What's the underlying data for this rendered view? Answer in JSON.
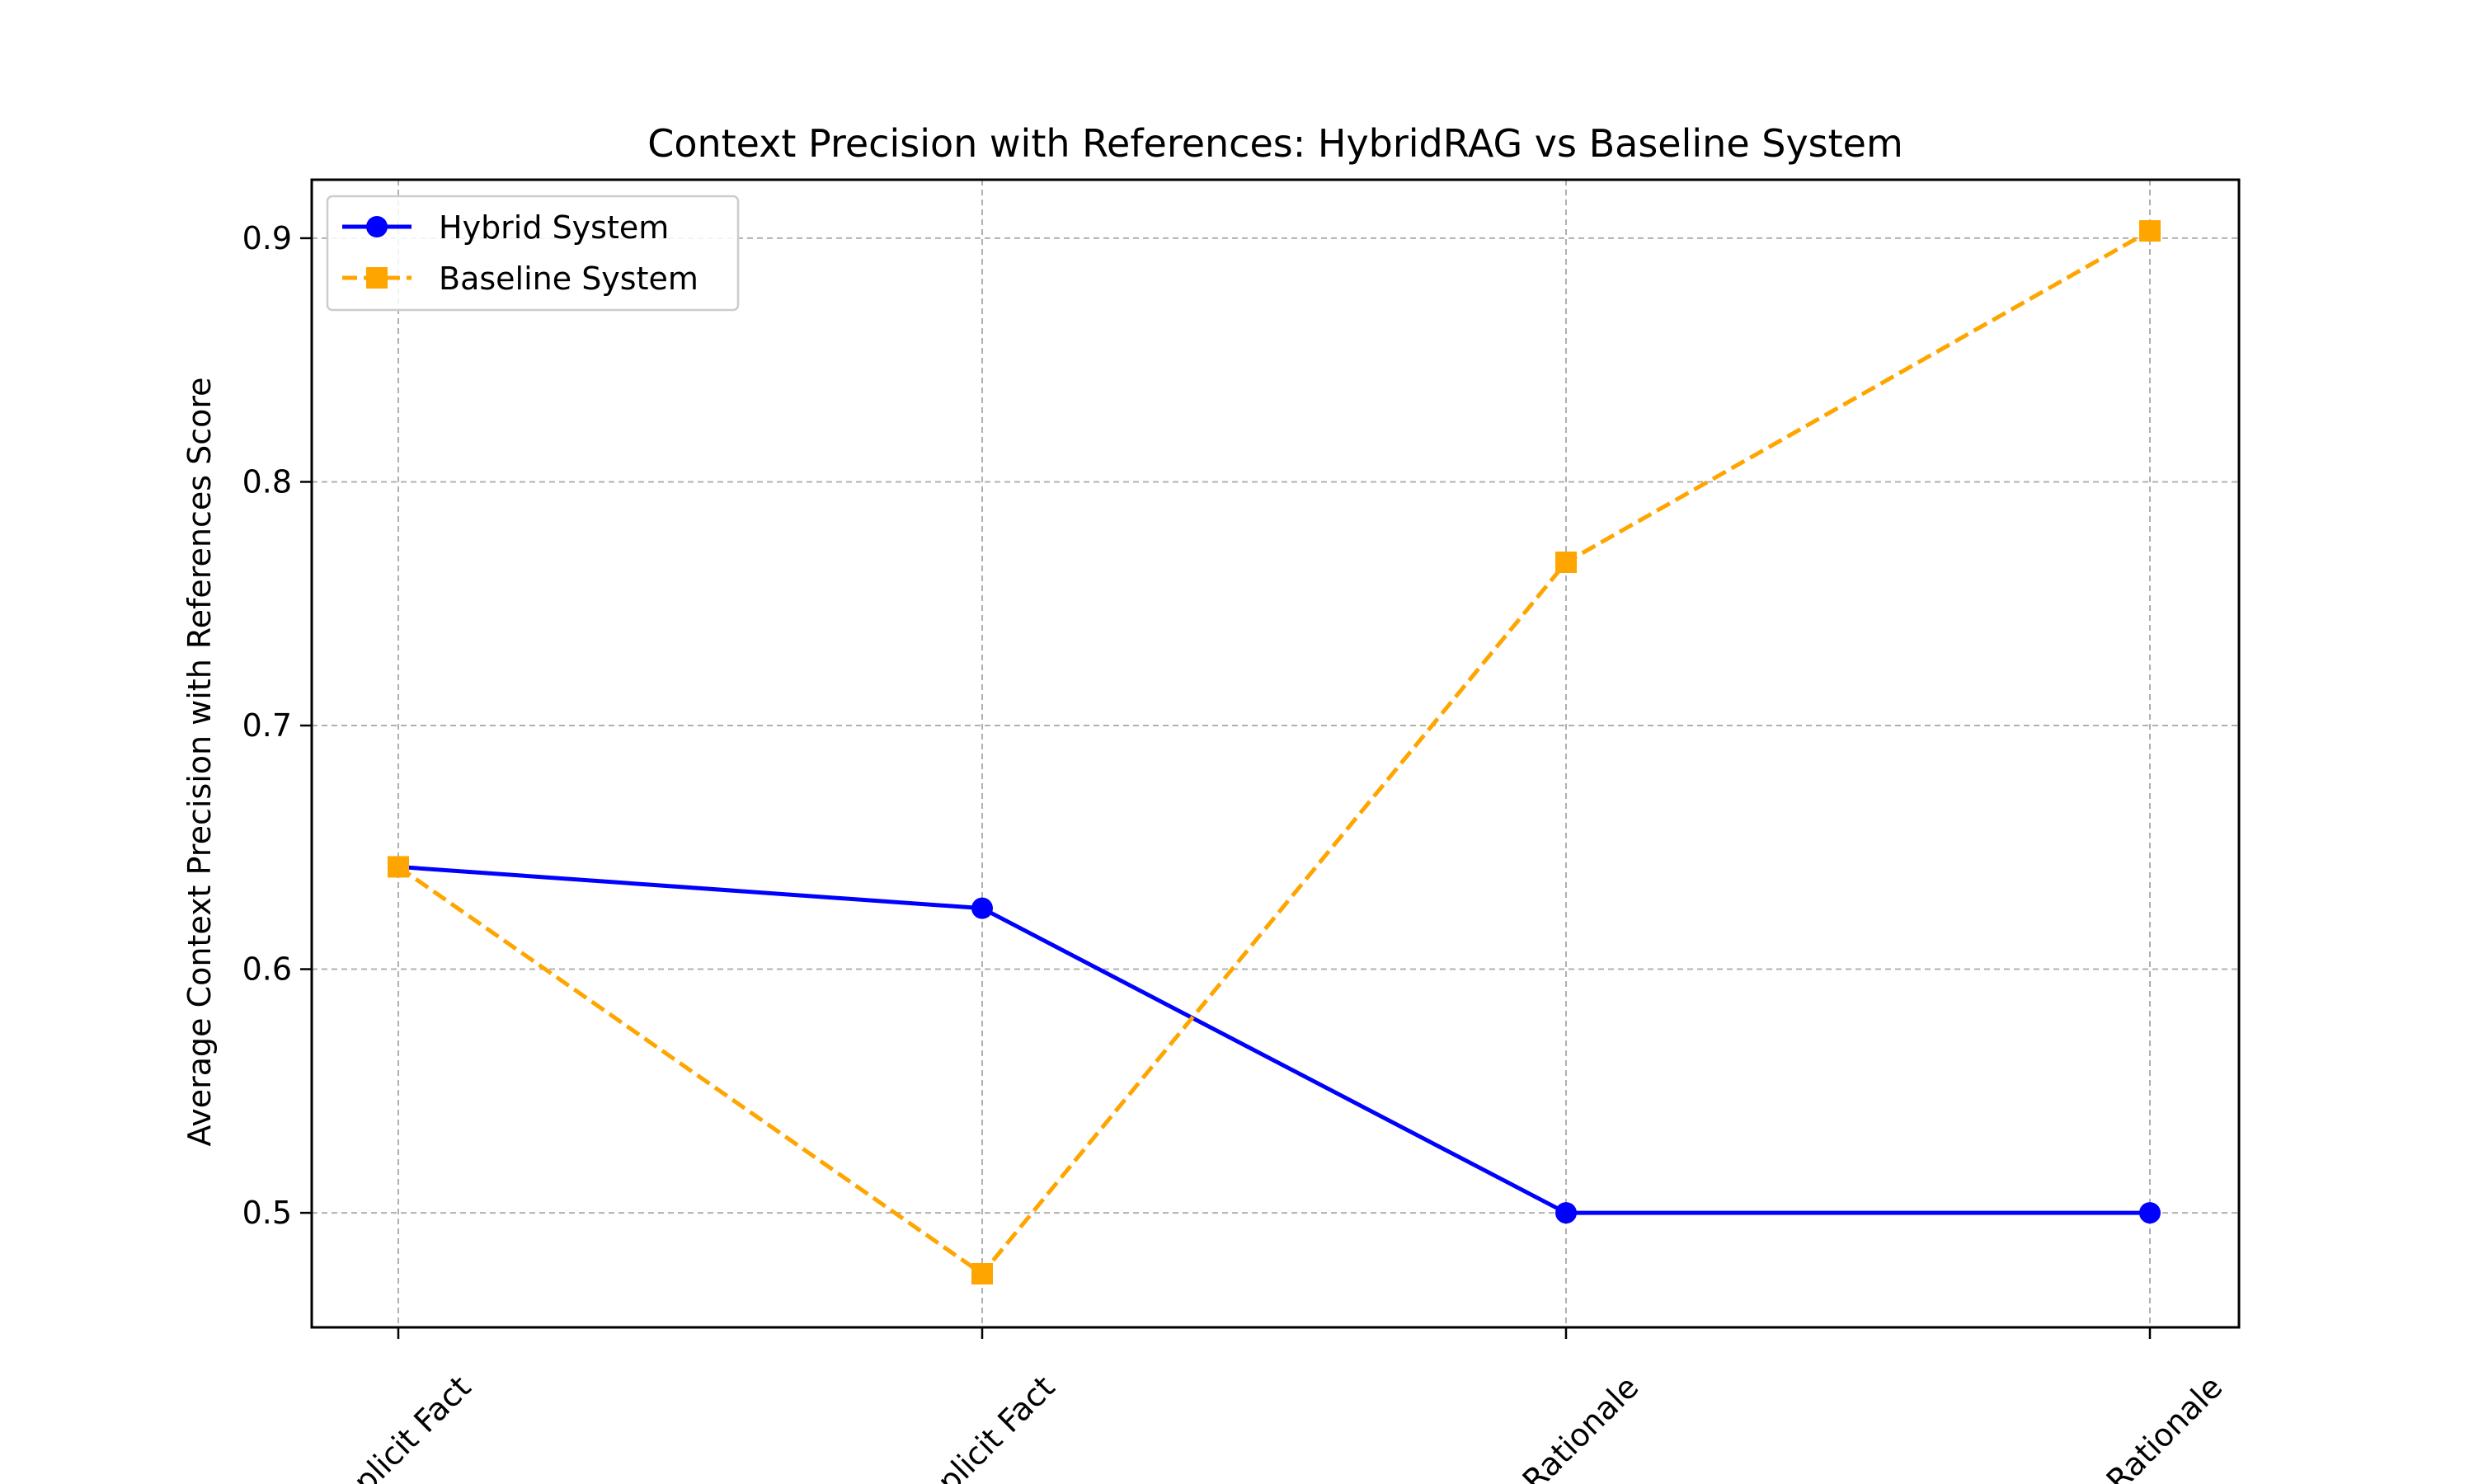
{
  "chart_data": {
    "type": "line",
    "title": "Context Precision with References: HybridRAG vs Baseline System",
    "xlabel": "",
    "ylabel": "Average Context Precision with References Score",
    "categories": [
      "Explicit Fact",
      "Implicit Fact",
      "Explicit Rationale",
      "Implicit Rationale"
    ],
    "visible_tick_labels": [
      "Explicit Fact",
      "mplicit Fact",
      "n Rationale",
      "e Rationale"
    ],
    "series": [
      {
        "name": "Hybrid System",
        "values": [
          0.642,
          0.625,
          0.5,
          0.5
        ],
        "color": "#0000ff",
        "line_style": "solid",
        "marker": "circle"
      },
      {
        "name": "Baseline System",
        "values": [
          0.642,
          0.475,
          0.767,
          0.903
        ],
        "color": "#ffa500",
        "line_style": "dashed",
        "marker": "square"
      }
    ],
    "ylim": [
      0.453,
      0.924
    ],
    "yticks": [
      0.5,
      0.6,
      0.7,
      0.8,
      0.9
    ],
    "ytick_labels": [
      "0.5",
      "0.6",
      "0.7",
      "0.8",
      "0.9"
    ],
    "grid": true,
    "legend_position": "upper-left"
  }
}
